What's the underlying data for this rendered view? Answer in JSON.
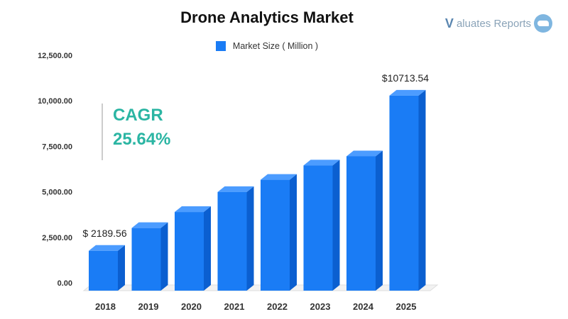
{
  "header": {
    "title": "Drone Analytics Market",
    "brand_mark": "V",
    "brand_text": "aluates Reports",
    "brand_icon": "bird-icon"
  },
  "cagr": {
    "label": "CAGR",
    "value": "25.64%"
  },
  "colors": {
    "bar_front": "#1a7cf5",
    "bar_side": "#0b5fd0",
    "bar_top": "#4c9cff",
    "accent": "#2bb5a3"
  },
  "chart_data": {
    "type": "bar",
    "title": "Drone Analytics Market",
    "categories": [
      "2018",
      "2019",
      "2020",
      "2021",
      "2022",
      "2023",
      "2024",
      "2025"
    ],
    "series": [
      {
        "name": "Market Size ( Million )",
        "values": [
          2189.56,
          3440,
          4320,
          5420,
          6090,
          6880,
          7380,
          10713.54
        ]
      }
    ],
    "data_labels": [
      {
        "category": "2018",
        "text": "$ 2189.56"
      },
      {
        "category": "2025",
        "text": "$10713.54"
      }
    ],
    "yticks": [
      "0.00",
      "2,500.00",
      "5,000.00",
      "7,500.00",
      "10,000.00",
      "12,500.00"
    ],
    "ylim": [
      0,
      12500
    ],
    "legend_position": "top-center",
    "grid": false
  }
}
